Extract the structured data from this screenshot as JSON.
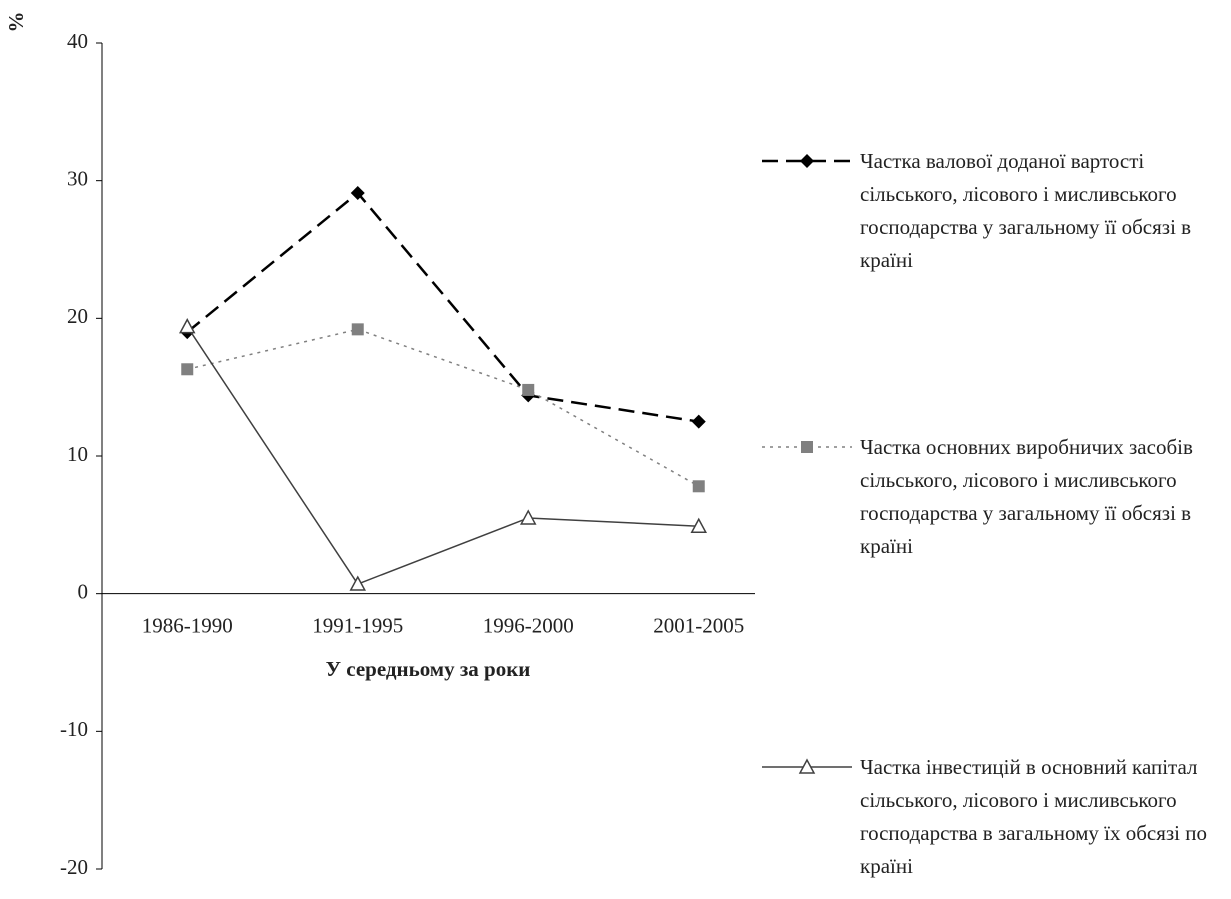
{
  "chart_data": {
    "type": "line",
    "y_label": "%",
    "x_label": "У середньому за роки",
    "categories": [
      "1986-1990",
      "1991-1995",
      "1996-2000",
      "2001-2005"
    ],
    "ylim": [
      -20,
      40
    ],
    "yticks": [
      -20,
      -10,
      0,
      10,
      20,
      30,
      40
    ],
    "series": [
      {
        "name": "Частка валової доданої вартості сільського, лісового і мисливського господарства у загальному її обсязі в країні",
        "color": "#000000",
        "line_style": "dashed",
        "marker": "diamond",
        "values": [
          19.0,
          29.1,
          14.4,
          12.5
        ]
      },
      {
        "name": "Частка основних виробничих засобів сільського, лісового і мисливського господарства у загальному її обсязі в країні",
        "color": "#808080",
        "line_style": "dotted",
        "marker": "square",
        "values": [
          16.3,
          19.2,
          14.8,
          7.8
        ]
      },
      {
        "name": "Частка інвестицій в основний капітал сільського, лісового і мисливського господарства в загальному їх обсязі по країні",
        "color": "#404040",
        "line_style": "solid",
        "marker": "triangle",
        "values": [
          19.4,
          0.7,
          5.5,
          4.9
        ]
      }
    ]
  }
}
